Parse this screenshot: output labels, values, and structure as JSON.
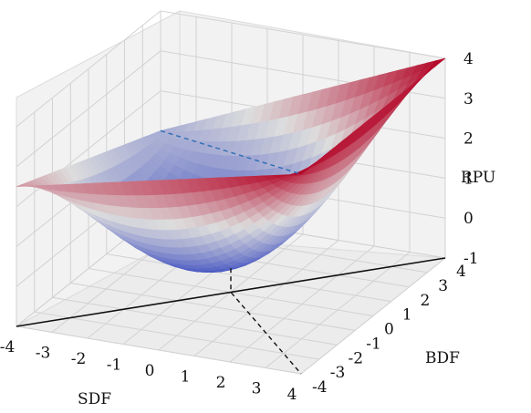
{
  "chart_data": {
    "type": "surface3d",
    "title": "",
    "xlabel": "SDF",
    "ylabel": "BDF",
    "zlabel": "RPU",
    "xlim": [
      -4,
      4
    ],
    "ylim": [
      -4,
      4
    ],
    "zlim": [
      -1,
      4
    ],
    "x_ticks": [
      "-4",
      "-3",
      "-2",
      "-1",
      "0",
      "1",
      "2",
      "3",
      "4"
    ],
    "y_ticks": [
      "-4",
      "-3",
      "-2",
      "-1",
      "0",
      "1",
      "2",
      "3",
      "4"
    ],
    "z_ticks": [
      "4",
      "3",
      "2",
      "1",
      "0",
      "-1"
    ],
    "grid": true,
    "colormap": "coolwarm",
    "colors": {
      "low": "#3b4cc0",
      "mid": "#dddddd",
      "high": "#b40426"
    },
    "surface_corners": [
      {
        "x": -4,
        "y": -4,
        "z": 2.5
      },
      {
        "x": 4,
        "y": -4,
        "z": 4.0
      },
      {
        "x": 4,
        "y": 4,
        "z": 4.0
      },
      {
        "x": -4,
        "y": 4,
        "z": 1.0
      }
    ],
    "surface_minimum": {
      "x": 0,
      "y": 0,
      "z": -0.4
    },
    "lines": [
      {
        "name": "",
        "style": "dashed",
        "color": "#2d6db5",
        "points": [
          [
            -4,
            4,
            1.0
          ],
          [
            4,
            -4,
            4.0
          ]
        ]
      },
      {
        "name": "",
        "style": "dashed",
        "color": "#111111",
        "points": [
          [
            0,
            0,
            -0.4
          ],
          [
            0,
            0,
            -1.0
          ],
          [
            4,
            -4,
            -1.0
          ]
        ]
      },
      {
        "name": "",
        "style": "solid",
        "color": "#111111",
        "points": [
          [
            -4,
            -4,
            -1.0
          ],
          [
            4,
            4,
            -1.0
          ]
        ]
      }
    ]
  }
}
